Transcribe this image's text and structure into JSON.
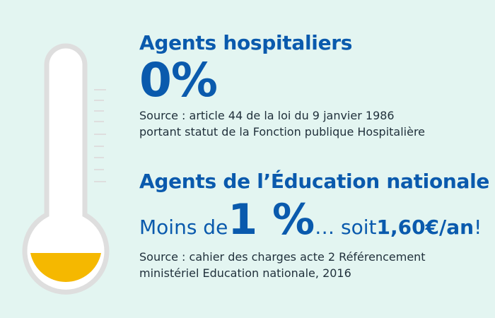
{
  "colors": {
    "background": "#e3f5f1",
    "accent_blue": "#0a5aad",
    "text": "#1f2f3a",
    "mercury": "#f5b800",
    "tube_outline": "#dedede"
  },
  "thermometer": {
    "fill_level": 0.05
  },
  "hospital": {
    "title": "Agents hospitaliers",
    "value": "0%",
    "source_line1": "Source : article 44 de la loi du 9 janvier 1986",
    "source_line2": "portant statut de la Fonction publique Hospitalière"
  },
  "education": {
    "title": "Agents de l’Éducation nationale",
    "prefix": "Moins de ",
    "value": "1 %",
    "middle": " … soit ",
    "amount": "1,60€/an",
    "suffix": " !",
    "source_line1": "Source : cahier des charges acte 2 Référencement",
    "source_line2": "ministériel Education nationale, 2016"
  }
}
